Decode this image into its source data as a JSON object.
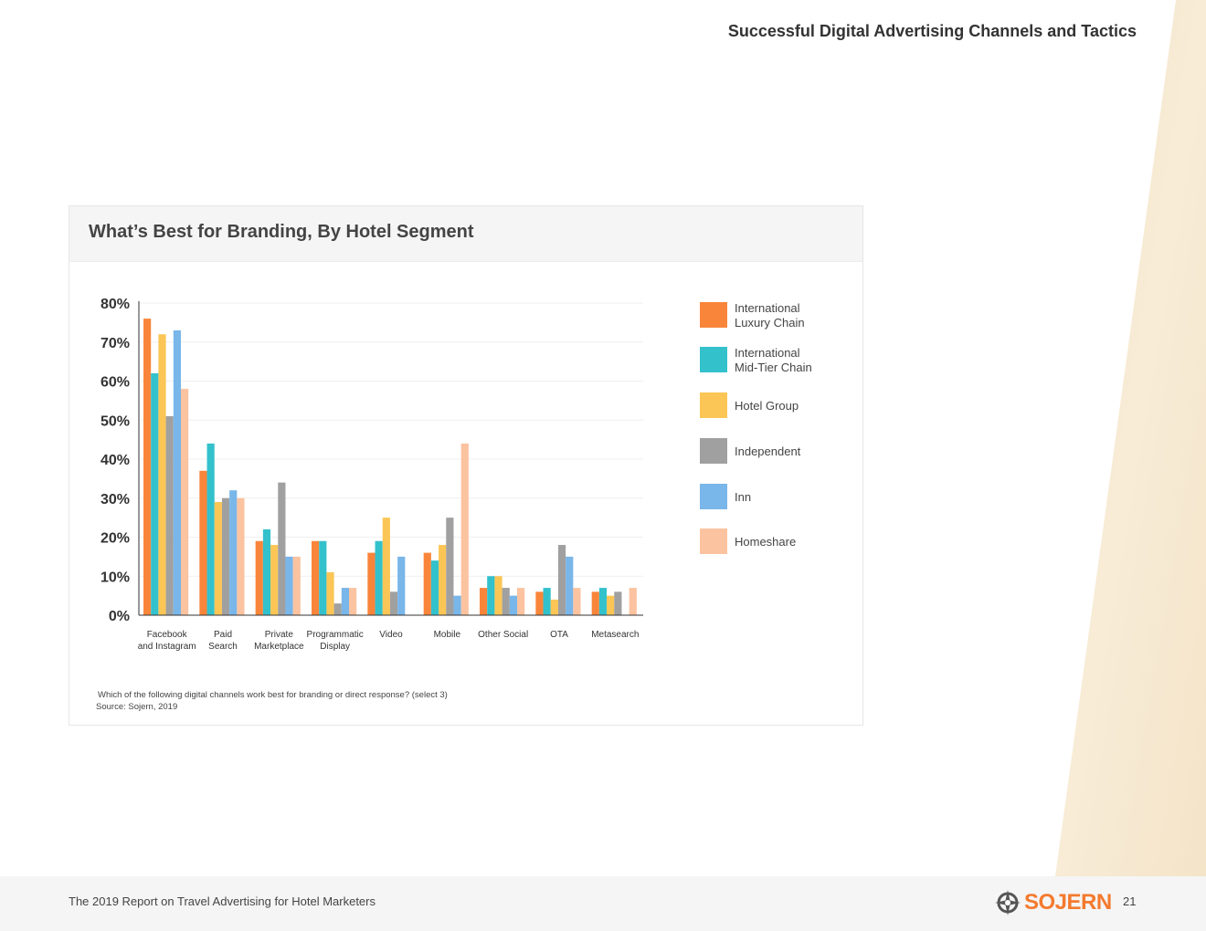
{
  "header": {
    "section_title": "Successful Digital Advertising Channels and Tactics"
  },
  "card": {
    "title": "What’s Best for Branding, By Hotel Segment",
    "question": "Which of the following digital channels work best for branding or direct response? (select 3)",
    "source": "Source: Sojern, 2019"
  },
  "colors": {
    "International Luxury Chain": "#f9853a",
    "International Mid-Tier Chain": "#33c1cc",
    "Hotel Group": "#fbc655",
    "Independent": "#a0a0a0",
    "Inn": "#79b6e9",
    "Homeshare": "#fbc3a0",
    "accent": "#f47a2e"
  },
  "chart_data": {
    "type": "bar",
    "title": "What’s Best for Branding, By Hotel Segment",
    "xlabel": "",
    "ylabel": "",
    "ylim": [
      0,
      80
    ],
    "y_ticks": [
      "0%",
      "10%",
      "20%",
      "30%",
      "40%",
      "50%",
      "60%",
      "70%",
      "80%"
    ],
    "y_tick_values": [
      0,
      10,
      20,
      30,
      40,
      50,
      60,
      70,
      80
    ],
    "grid": true,
    "legend_position": "right",
    "categories": [
      "Facebook\nand Instagram",
      "Paid\nSearch",
      "Private\nMarketplace",
      "Programmatic\nDisplay",
      "Video",
      "Mobile",
      "Other Social",
      "OTA",
      "Metasearch"
    ],
    "series": [
      {
        "name": "International\nLuxury Chain",
        "values": [
          76,
          37,
          19,
          19,
          16,
          16,
          7,
          6,
          6
        ]
      },
      {
        "name": "International\nMid-Tier Chain",
        "values": [
          62,
          44,
          22,
          19,
          19,
          14,
          10,
          7,
          7
        ]
      },
      {
        "name": "Hotel Group",
        "values": [
          72,
          29,
          18,
          11,
          25,
          18,
          10,
          4,
          5
        ]
      },
      {
        "name": "Independent",
        "values": [
          51,
          30,
          34,
          3,
          6,
          25,
          7,
          18,
          6
        ]
      },
      {
        "name": "Inn",
        "values": [
          73,
          32,
          15,
          7,
          15,
          5,
          5,
          15,
          0
        ]
      },
      {
        "name": "Homeshare",
        "values": [
          58,
          30,
          15,
          7,
          0,
          44,
          7,
          7,
          7
        ]
      }
    ]
  },
  "footer": {
    "report_title": "The 2019 Report on Travel Advertising for Hotel Marketers",
    "logo_text": "SOJERN",
    "page_number": "21"
  }
}
